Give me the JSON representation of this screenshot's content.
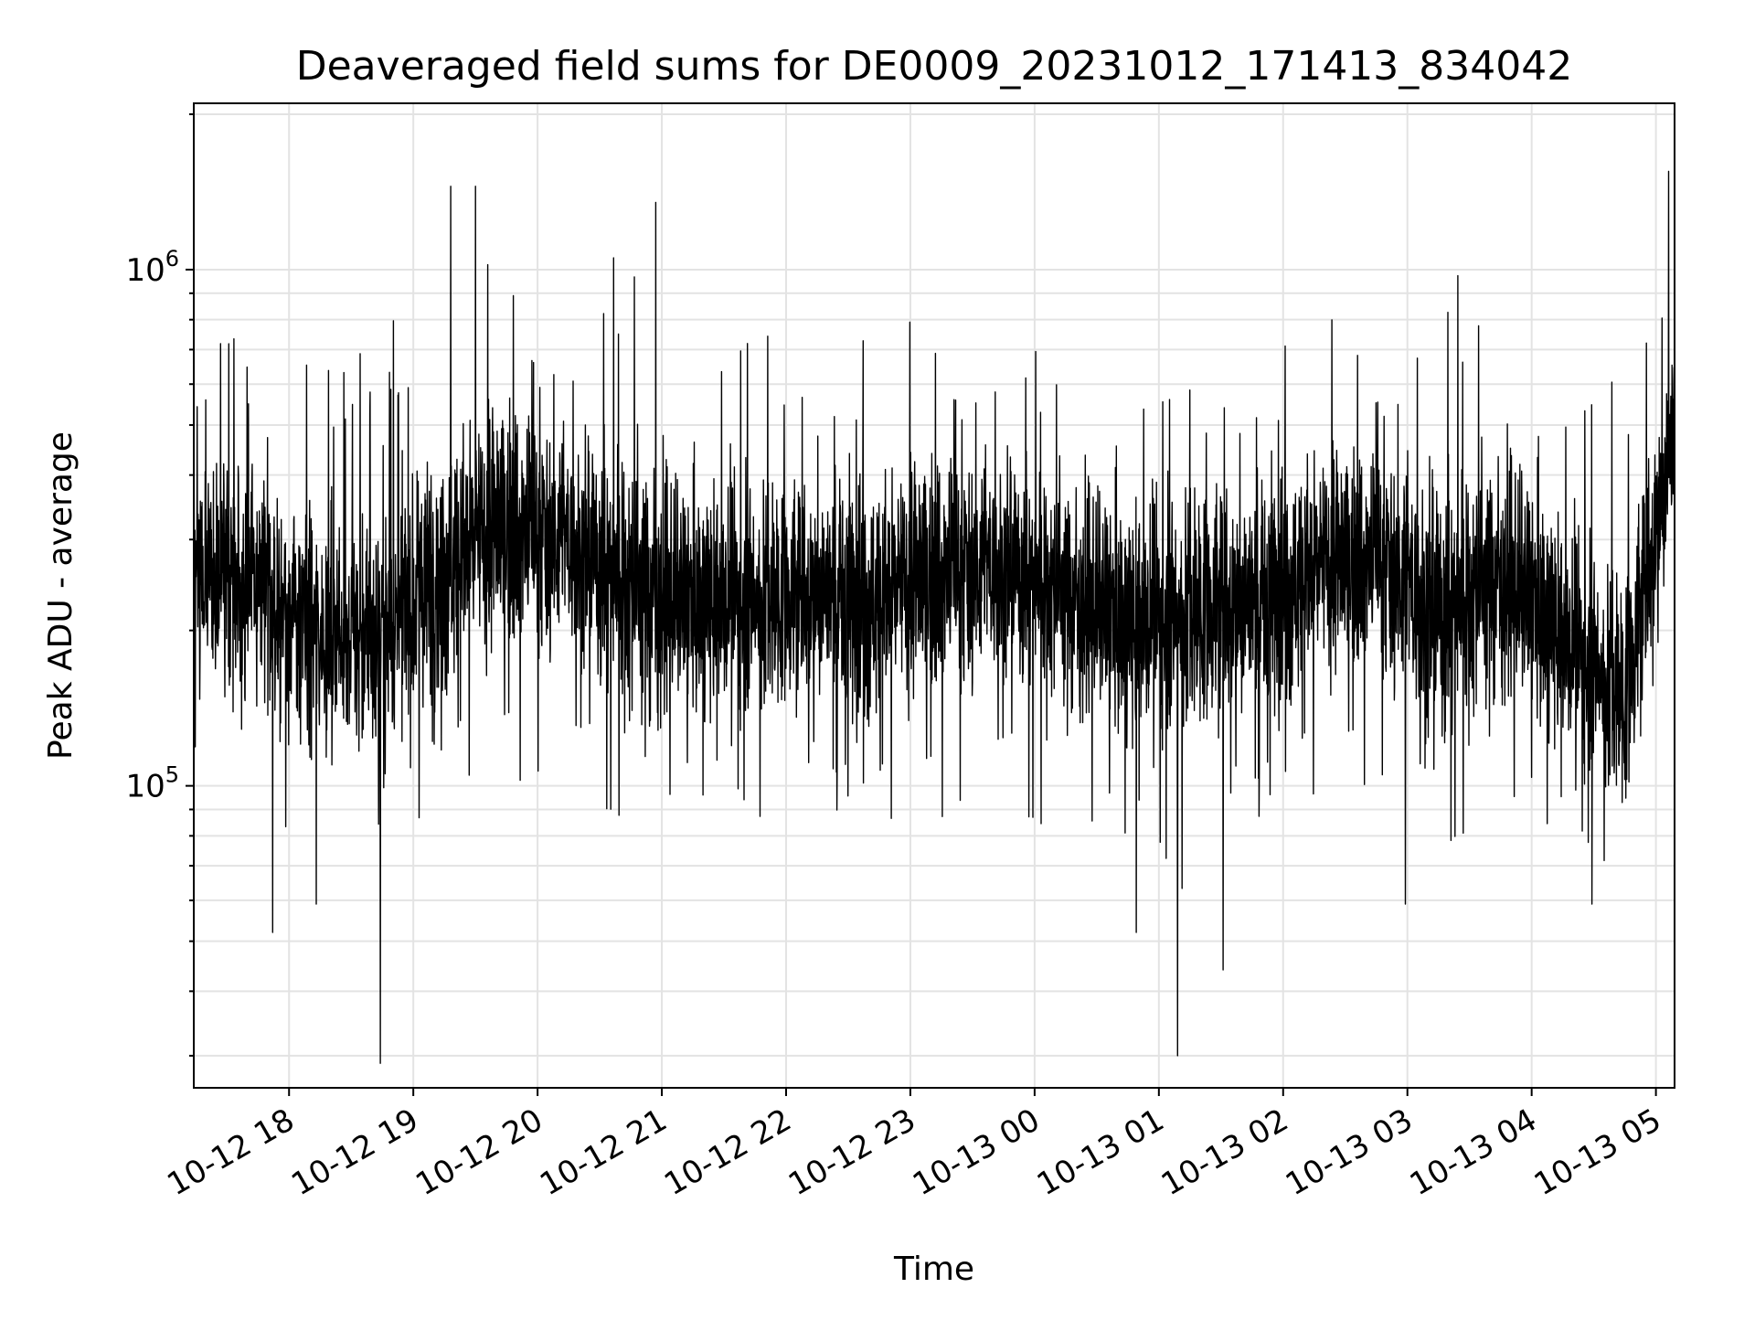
{
  "chart_data": {
    "type": "line",
    "title": "Deaveraged field sums for DE0009_20231012_171413_834042",
    "xlabel": "Time",
    "ylabel": "Peak ADU - average",
    "y_scale": "log",
    "grid": true,
    "legend": "none",
    "x_range": [
      "2023-10-12 17:14",
      "2023-10-13 05:09"
    ],
    "ylim": [
      26000,
      2100000
    ],
    "x_tick_labels": [
      "10-12 18",
      "10-12 19",
      "10-12 20",
      "10-12 21",
      "10-12 22",
      "10-12 23",
      "10-13 00",
      "10-13 01",
      "10-13 02",
      "10-13 03",
      "10-13 04",
      "10-13 05"
    ],
    "y_tick_labels": [
      {
        "value": 100000,
        "base": "10",
        "exponent": "5"
      },
      {
        "value": 1000000,
        "base": "10",
        "exponent": "6"
      }
    ],
    "series": [
      {
        "color": "#000000",
        "approximate_envelope": {
          "time": [
            "2023-10-12 17:14",
            "2023-10-12 17:45",
            "2023-10-12 18:15",
            "2023-10-12 18:45",
            "2023-10-12 19:15",
            "2023-10-12 19:45",
            "2023-10-12 20:15",
            "2023-10-12 20:45",
            "2023-10-12 21:15",
            "2023-10-12 21:45",
            "2023-10-12 22:15",
            "2023-10-12 22:45",
            "2023-10-12 23:15",
            "2023-10-12 23:45",
            "2023-10-13 00:15",
            "2023-10-13 00:45",
            "2023-10-13 01:15",
            "2023-10-13 01:45",
            "2023-10-13 02:15",
            "2023-10-13 02:45",
            "2023-10-13 03:15",
            "2023-10-13 03:45",
            "2023-10-13 04:15",
            "2023-10-13 04:45",
            "2023-10-13 05:09"
          ],
          "typical": [
            270000,
            240000,
            200000,
            190000,
            270000,
            320000,
            300000,
            250000,
            220000,
            230000,
            240000,
            230000,
            260000,
            270000,
            240000,
            200000,
            220000,
            230000,
            260000,
            280000,
            220000,
            260000,
            190000,
            150000,
            500000
          ],
          "high": [
            700000,
            850000,
            650000,
            750000,
            1100000,
            1100000,
            750000,
            1300000,
            650000,
            800000,
            650000,
            900000,
            800000,
            750000,
            700000,
            600000,
            600000,
            700000,
            900000,
            750000,
            1100000,
            900000,
            550000,
            650000,
            1400000
          ],
          "low": [
            110000,
            80000,
            85000,
            70000,
            90000,
            95000,
            90000,
            80000,
            85000,
            80000,
            80000,
            75000,
            80000,
            85000,
            75000,
            70000,
            55000,
            75000,
            85000,
            95000,
            70000,
            85000,
            70000,
            65000,
            190000
          ]
        }
      }
    ],
    "notable_extremes": [
      {
        "time": "2023-10-12 17:52",
        "value": 52000
      },
      {
        "time": "2023-10-12 18:13",
        "value": 59000
      },
      {
        "time": "2023-10-12 18:44",
        "value": 29000
      },
      {
        "time": "2023-10-12 19:18",
        "value": 1450000
      },
      {
        "time": "2023-10-12 19:30",
        "value": 1450000
      },
      {
        "time": "2023-10-12 20:57",
        "value": 1350000
      },
      {
        "time": "2023-10-13 00:49",
        "value": 52000
      },
      {
        "time": "2023-10-13 01:09",
        "value": 30000
      },
      {
        "time": "2023-10-13 01:31",
        "value": 44000
      },
      {
        "time": "2023-10-13 02:59",
        "value": 59000
      },
      {
        "time": "2023-10-13 04:29",
        "value": 59000
      },
      {
        "time": "2023-10-13 05:06",
        "value": 1550000
      }
    ]
  }
}
